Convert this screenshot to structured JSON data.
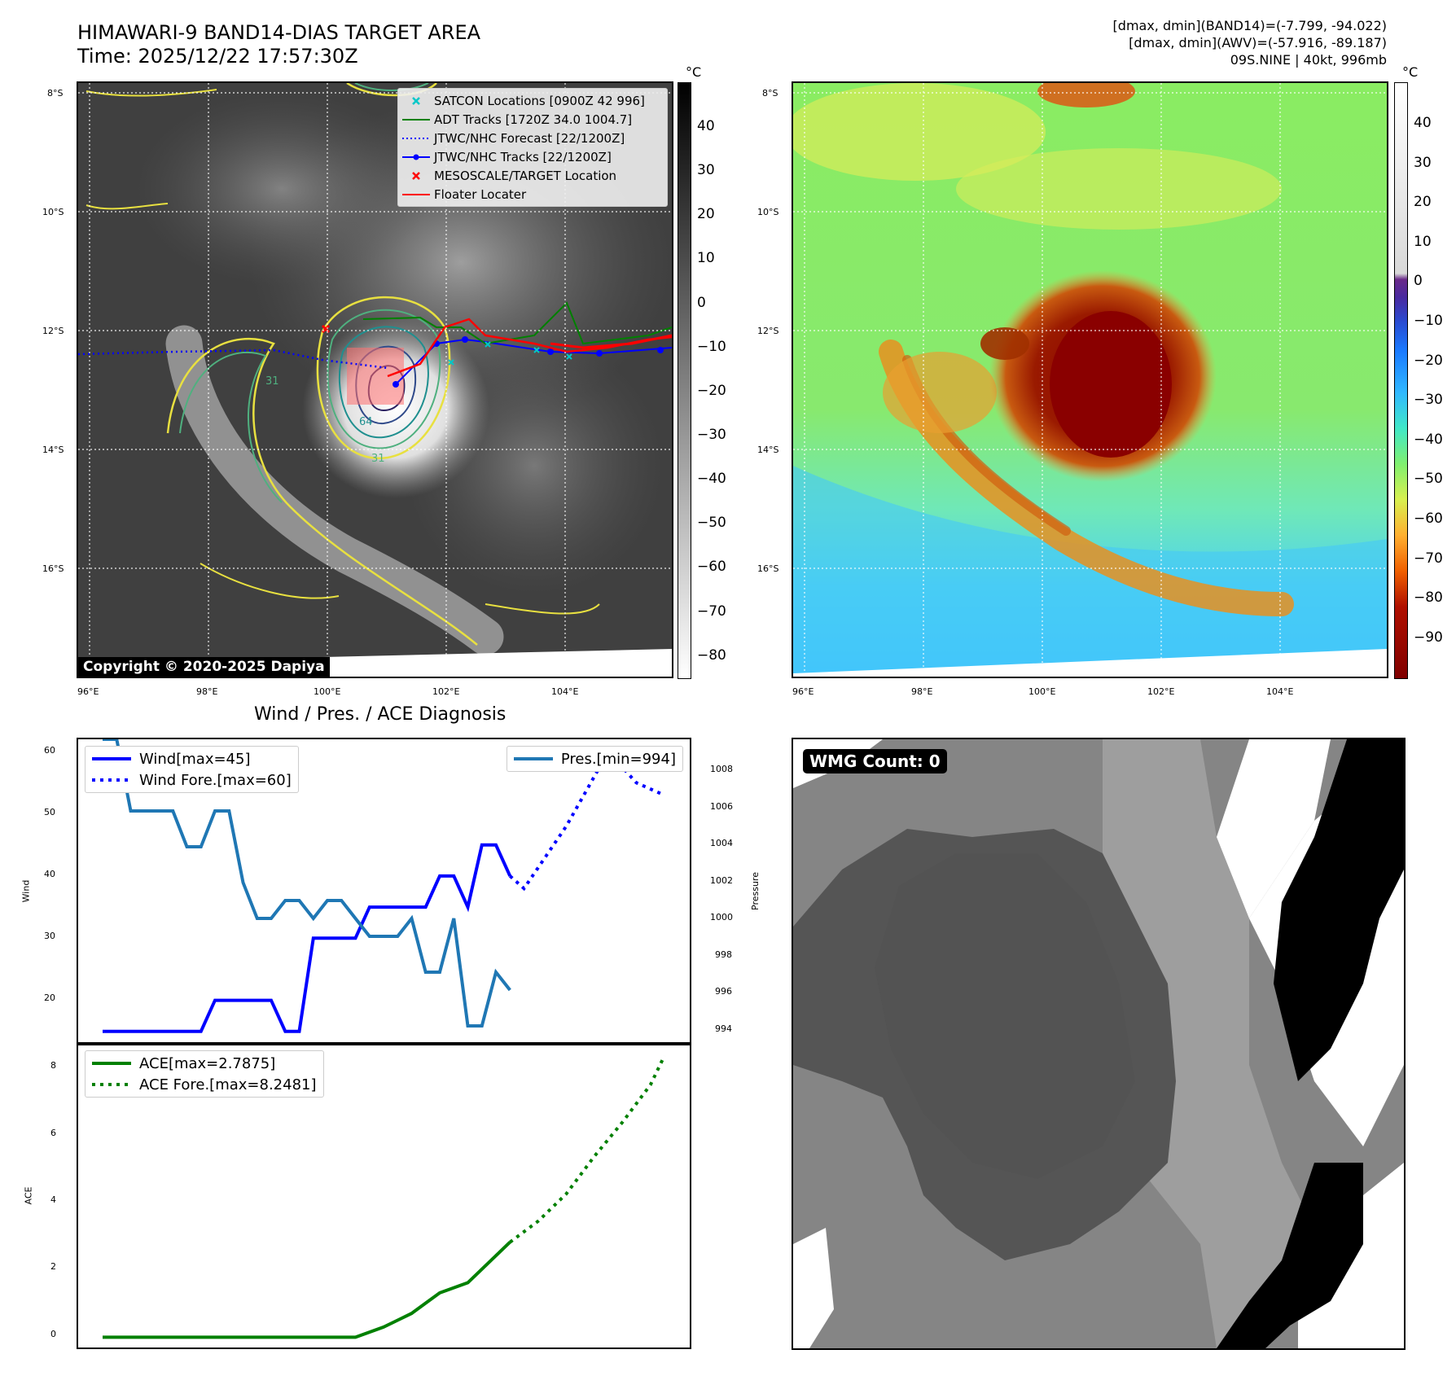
{
  "header": {
    "title_line1": "HIMAWARI-9 BAND14-DIAS TARGET AREA",
    "title_line2": "Time: 2025/12/22 17:57:30Z",
    "info_line1": "[dmax, dmin](BAND14)=(-7.799, -94.022)",
    "info_line2": "[dmax, dmin](AWV)=(-57.916, -89.187)",
    "info_line3": "09S.NINE | 40kt, 996mb"
  },
  "maps": {
    "lat_ticks": [
      "8°S",
      "10°S",
      "12°S",
      "14°S",
      "16°S"
    ],
    "lon_ticks": [
      "96°E",
      "98°E",
      "100°E",
      "102°E",
      "104°E"
    ],
    "copyright": "Copyright © 2020-2025 Dapiya",
    "ir_colorbar": {
      "unit": "°C",
      "ticks": [
        "40",
        "30",
        "20",
        "10",
        "0",
        "−10",
        "−20",
        "−30",
        "−40",
        "−50",
        "−60",
        "−70",
        "−80"
      ]
    },
    "awv_colorbar": {
      "unit": "°C",
      "ticks": [
        "40",
        "30",
        "20",
        "10",
        "0",
        "−10",
        "−20",
        "−30",
        "−40",
        "−50",
        "−60",
        "−70",
        "−80",
        "−90"
      ]
    },
    "legend": [
      {
        "label": "SATCON Locations [0900Z 42 996]",
        "color": "#00c8c8",
        "symbol": "x"
      },
      {
        "label": "ADT Tracks [1720Z 34.0 1004.7]",
        "color": "#008000",
        "symbol": "line"
      },
      {
        "label": "JTWC/NHC Forecast [22/1200Z]",
        "color": "#0000ff",
        "symbol": "dots"
      },
      {
        "label": "JTWC/NHC Tracks [22/1200Z]",
        "color": "#0000ff",
        "symbol": "line-dot"
      },
      {
        "label": "MESOSCALE/TARGET Location",
        "color": "#ff0000",
        "symbol": "x"
      },
      {
        "label": "Floater Locater",
        "color": "#ff0000",
        "symbol": "line"
      }
    ],
    "contour_labels": [
      "31",
      "64",
      "31"
    ]
  },
  "diagnosis": {
    "title": "Wind / Pres. / ACE Diagnosis",
    "wind_ylabel": "Wind",
    "pres_ylabel": "Pressure",
    "ace_ylabel": "ACE",
    "wind_ticks": [
      "60",
      "50",
      "40",
      "30",
      "20"
    ],
    "pres_ticks": [
      "1008",
      "1006",
      "1004",
      "1002",
      "1000",
      "998",
      "996",
      "994"
    ],
    "ace_ticks": [
      "8",
      "6",
      "4",
      "2",
      "0"
    ],
    "legend_wind": "Wind[max=45]",
    "legend_wind_fore": "Wind Fore.[max=60]",
    "legend_pres": "Pres.[min=994]",
    "legend_ace": "ACE[max=2.7875]",
    "legend_ace_fore": "ACE Fore.[max=8.2481]"
  },
  "wmg": {
    "label": "WMG Count: 0"
  },
  "colors": {
    "wind": "#0000ff",
    "pres": "#1f77b4",
    "ace": "#008000"
  },
  "chart_data": [
    {
      "type": "line",
      "title": "Wind / Pres. / ACE Diagnosis",
      "ylabel": "Wind",
      "ylim": [
        13,
        62
      ],
      "xlim": [
        0,
        40
      ],
      "series": [
        {
          "name": "Wind[max=45]",
          "x": [
            0,
            7,
            8,
            12,
            13,
            14,
            15,
            16,
            17,
            18,
            19,
            20,
            21,
            22,
            23,
            24,
            25,
            26,
            27,
            28,
            29
          ],
          "values": [
            15,
            15,
            20,
            20,
            15,
            15,
            30,
            30,
            30,
            30,
            35,
            35,
            35,
            35,
            35,
            40,
            40,
            35,
            45,
            45,
            40
          ]
        },
        {
          "name": "Wind Fore.[max=60]",
          "x": [
            29,
            30,
            33,
            36,
            38,
            40
          ],
          "values": [
            40,
            38,
            48,
            60,
            55,
            53
          ]
        }
      ]
    },
    {
      "type": "line",
      "ylabel": "Pressure",
      "ylim": [
        993,
        1010
      ],
      "xlim": [
        0,
        40
      ],
      "series": [
        {
          "name": "Pres.[min=994]",
          "x": [
            0,
            1,
            2,
            5,
            6,
            7,
            8,
            9,
            10,
            11,
            12,
            13,
            14,
            15,
            16,
            17,
            18,
            19,
            20,
            21,
            22,
            23,
            24,
            25,
            26,
            27,
            28,
            29
          ],
          "values": [
            1010,
            1010,
            1006,
            1006,
            1004,
            1004,
            1006,
            1006,
            1002,
            1000,
            1000,
            1001,
            1001,
            1000,
            1001,
            1001,
            1000,
            999,
            999,
            999,
            1000,
            997,
            997,
            1000,
            994,
            994,
            997,
            996
          ]
        }
      ]
    },
    {
      "type": "line",
      "ylabel": "ACE",
      "ylim": [
        -0.3,
        8.6
      ],
      "xlim": [
        0,
        40
      ],
      "series": [
        {
          "name": "ACE[max=2.7875]",
          "x": [
            0,
            12,
            15,
            18,
            20,
            21,
            22,
            23,
            24,
            26,
            29
          ],
          "values": [
            0,
            0,
            0,
            0,
            0.3,
            0.5,
            0.7,
            1.0,
            1.3,
            1.6,
            2.7875
          ]
        },
        {
          "name": "ACE Fore.[max=8.2481]",
          "x": [
            29,
            31,
            33,
            35,
            37,
            39,
            40
          ],
          "values": [
            2.7875,
            3.4,
            4.2,
            5.3,
            6.3,
            7.4,
            8.2481
          ]
        }
      ]
    }
  ]
}
